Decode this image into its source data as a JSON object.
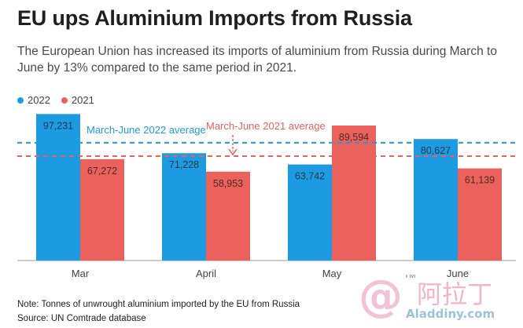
{
  "title": "EU ups Aluminium Imports from Russia",
  "subtitle": "The European Union has increased its imports of aluminium from Russia during March to June by 13% compared to the same period in 2021.",
  "colors": {
    "series_2022": "#1d9be2",
    "series_2021": "#eb615b",
    "text": "#222222"
  },
  "chart_data": {
    "type": "bar",
    "categories": [
      "Mar",
      "April",
      "May",
      "June"
    ],
    "series": [
      {
        "name": "2022",
        "values": [
          97231,
          71228,
          63742,
          80627
        ],
        "labels": [
          "97,231",
          "71,228",
          "63,742",
          "80,627"
        ]
      },
      {
        "name": "2021",
        "values": [
          67272,
          58953,
          89594,
          61139
        ],
        "labels": [
          "67,272",
          "58,953",
          "89,594",
          "61,139"
        ]
      }
    ],
    "ylim": [
      0,
      100000
    ],
    "reference_lines": [
      {
        "label": "March-June 2022 average",
        "value": 78207,
        "series": "2022"
      },
      {
        "label": "March-June 2021 average",
        "value": 69240,
        "series": "2021"
      }
    ],
    "legend_position": "top-left",
    "grid": false
  },
  "notes": {
    "note": "Note: Tonnes of unwrought aluminium imported by the EU from Russia",
    "source": "Source: UN Comtrade database"
  },
  "watermark": {
    "brand_glyph": "@",
    "cn_text": "阿拉丁",
    "domain": "Aladdiny.com",
    "tm": "TM"
  }
}
